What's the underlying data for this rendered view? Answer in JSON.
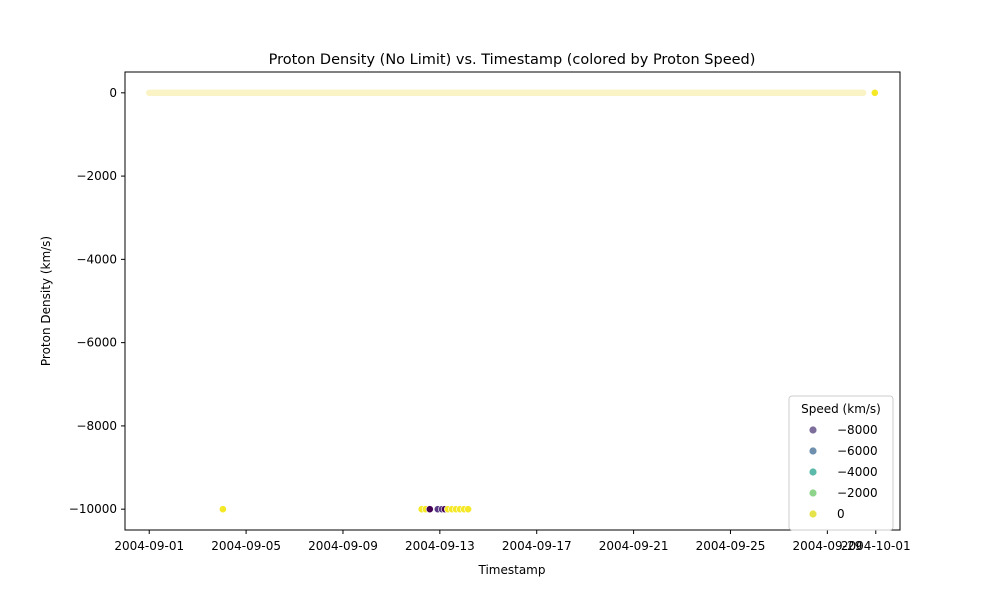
{
  "chart_data": {
    "type": "scatter",
    "title": "Proton Density (No Limit) vs. Timestamp (colored by Proton Speed)",
    "xlabel": "Timestamp",
    "ylabel": "Proton Density (km/s)",
    "xlim": [
      "2004-08-31T00:00",
      "2004-10-02T00:00"
    ],
    "ylim": [
      -10500,
      500
    ],
    "x_ticks": [
      "2004-09-01",
      "2004-09-05",
      "2004-09-09",
      "2004-09-13",
      "2004-09-17",
      "2004-09-21",
      "2004-09-25",
      "2004-09-29",
      "2004-10-01"
    ],
    "y_ticks": [
      0,
      -2000,
      -4000,
      -6000,
      -8000,
      -10000
    ],
    "y_tick_labels": [
      "0",
      "−2000",
      "−4000",
      "−6000",
      "−8000",
      "−10000"
    ],
    "grid": false,
    "legend": {
      "title": "Speed (km/s)",
      "placement": "bottom-right",
      "entries": [
        {
          "label": "−8000",
          "color": "#7d6e9c"
        },
        {
          "label": "−6000",
          "color": "#6e8fae"
        },
        {
          "label": "−4000",
          "color": "#5cbaab"
        },
        {
          "label": "−2000",
          "color": "#8fd48b"
        },
        {
          "label": "0",
          "color": "#e6e34a"
        }
      ]
    },
    "colors": {
      "baseline": "#faf3c6",
      "yellow": "#f5e826",
      "purple": "#440154",
      "violet": "#5b3a86",
      "edge": "#ffffff"
    },
    "baseline_series": {
      "x_start": "2004-09-01T00:00",
      "x_end": "2004-09-30T12:00",
      "y": 0
    },
    "points": [
      {
        "x": "2004-09-30T23:00",
        "y": 0,
        "color": "yellow"
      },
      {
        "x": "2004-09-04T01:00",
        "y": -10000,
        "color": "yellow"
      },
      {
        "x": "2004-09-12T06:00",
        "y": -10000,
        "color": "yellow"
      },
      {
        "x": "2004-09-12T10:00",
        "y": -10000,
        "color": "yellow"
      },
      {
        "x": "2004-09-12T14:00",
        "y": -10000,
        "color": "purple"
      },
      {
        "x": "2004-09-12T22:00",
        "y": -10000,
        "color": "violet"
      },
      {
        "x": "2004-09-13T02:00",
        "y": -10000,
        "color": "violet"
      },
      {
        "x": "2004-09-13T05:00",
        "y": -10000,
        "color": "purple"
      },
      {
        "x": "2004-09-13T08:00",
        "y": -10000,
        "color": "yellow"
      },
      {
        "x": "2004-09-13T12:00",
        "y": -10000,
        "color": "yellow"
      },
      {
        "x": "2004-09-13T16:00",
        "y": -10000,
        "color": "yellow"
      },
      {
        "x": "2004-09-13T20:00",
        "y": -10000,
        "color": "yellow"
      },
      {
        "x": "2004-09-14T00:00",
        "y": -10000,
        "color": "yellow"
      },
      {
        "x": "2004-09-14T04:00",
        "y": -10000,
        "color": "yellow"
      }
    ]
  }
}
